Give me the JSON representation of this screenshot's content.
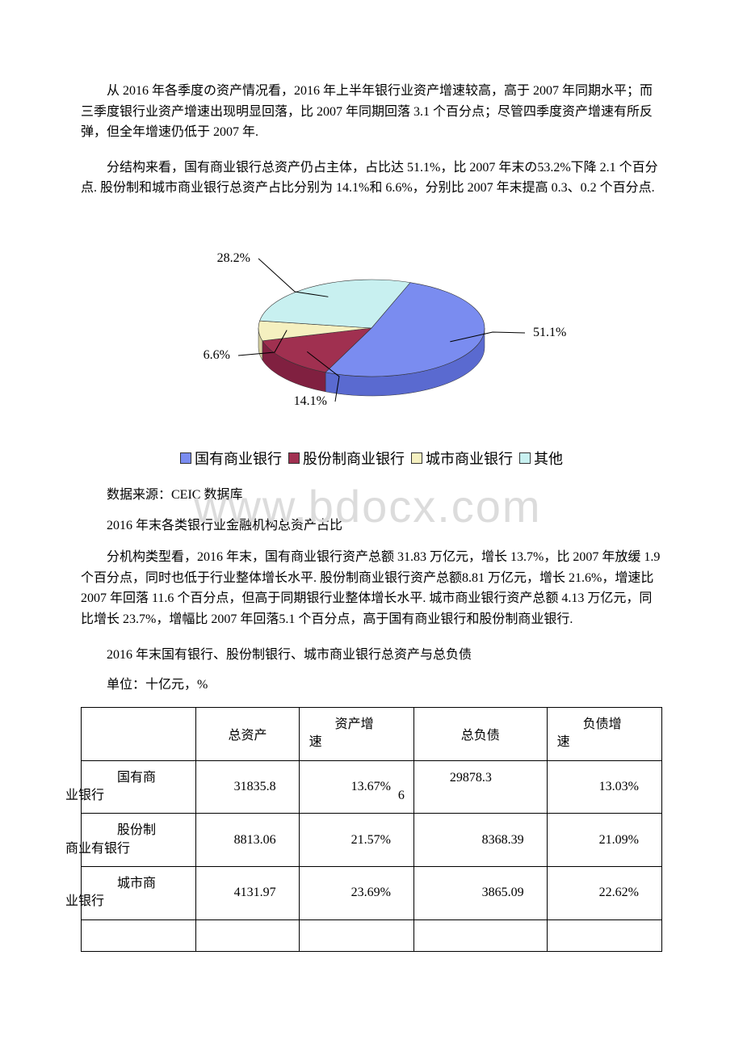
{
  "paragraphs": {
    "p1": "从 2016 年各季度の资产情况看，2016 年上半年银行业资产增速较高，高于 2007 年同期水平；而三季度银行业资产增速出现明显回落，比 2007 年同期回落 3.1 个百分点；尽管四季度资产增速有所反弹，但全年增速仍低于 2007 年.",
    "p2": "分结构来看，国有商业银行总资产仍占主体，占比达 51.1%，比 2007 年末の53.2%下降 2.1 个百分点. 股份制和城市商业银行总资产占比分别为 14.1%和 6.6%，分别比 2007 年末提高 0.3、0.2 个百分点.",
    "source": "数据来源：CEIC 数据库",
    "chart_title": "2016 年末各类银行业金融机构总资产占比",
    "p3": "分机构类型看，2016 年末，国有商业银行资产总额 31.83 万亿元，增长 13.7%，比 2007 年放缓 1.9 个百分点，同时也低于行业整体增长水平. 股份制商业银行资产总额8.81 万亿元，增长 21.6%，增速比 2007 年回落 11.6 个百分点，但高于同期银行业整体增长水平. 城市商业银行资产总额 4.13 万亿元，同比增长 23.7%，增幅比 2007 年回落5.1 个百分点，高于国有商业银行和股份制商业银行.",
    "table_title": "2016 年末国有银行、股份制银行、城市商业银行总资产与总负债",
    "unit": "单位：十亿元，%"
  },
  "pie": {
    "type": "pie-3d",
    "slices": [
      {
        "label": "国有商业银行",
        "value": 51.1,
        "display": "51.1%",
        "color": "#7a8cf0",
        "side": "#5a6ad0"
      },
      {
        "label": "股份制商业银行",
        "value": 14.1,
        "display": "14.1%",
        "color": "#a03050",
        "side": "#802040"
      },
      {
        "label": "城市商业银行",
        "value": 6.6,
        "display": "6.6%",
        "color": "#f5f0c0",
        "side": "#d5d0a0"
      },
      {
        "label": "其他",
        "value": 28.2,
        "display": "28.2%",
        "color": "#c8f0f0",
        "side": "#a8d0d0"
      }
    ],
    "label_fontsize": 16,
    "label_color": "#000000",
    "background": "#ffffff"
  },
  "legend": {
    "items": [
      {
        "swatch": "#7a8cf0",
        "text": "国有商业银行"
      },
      {
        "swatch": "#a03050",
        "text": "股份制商业银行"
      },
      {
        "swatch": "#f5f0c0",
        "text": "城市商业银行"
      },
      {
        "swatch": "#c8f0f0",
        "text": "其他"
      }
    ]
  },
  "watermark": {
    "line1": "www.bdocx.com",
    "color": "#dcdcdc",
    "fontsize": 56
  },
  "table": {
    "columns": [
      "",
      "总资产",
      "资产增速",
      "总负债",
      "负债增速"
    ],
    "col_header_split": {
      "c2": {
        "top": "资产增",
        "bottom": "速"
      },
      "c4": {
        "top": "负债增",
        "bottom": "速"
      }
    },
    "rows": [
      {
        "label": "国有商业银行",
        "label_split": [
          "国有商",
          "业银行"
        ],
        "assets": "31835.8",
        "agrow": "13.67%",
        "liab": "29878.36",
        "liab_split": [
          "29878.3",
          "6"
        ],
        "lgrow": "13.03%"
      },
      {
        "label": "股份制商业有银行",
        "label_split": [
          "股份制",
          "商业有银行"
        ],
        "assets": "8813.06",
        "agrow": "21.57%",
        "liab": "8368.39",
        "lgrow": "21.09%"
      },
      {
        "label": "城市商业银行",
        "label_split": [
          "城市商",
          "业银行"
        ],
        "assets": "4131.97",
        "agrow": "23.69%",
        "liab": "3865.09",
        "lgrow": "22.62%"
      }
    ],
    "border_color": "#000000",
    "fontsize": 16
  }
}
